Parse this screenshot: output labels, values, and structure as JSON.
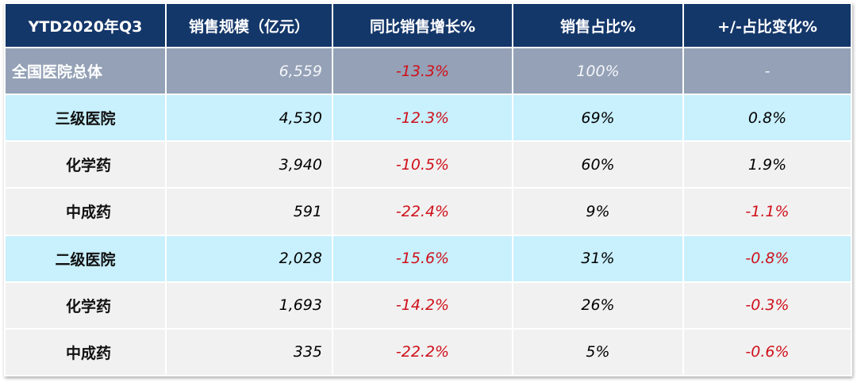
{
  "headers": [
    "YTD2020年Q3",
    "销售规模（亿元）",
    "同比销售增长%",
    "销售占比%",
    "+/-占比变化%"
  ],
  "rows": [
    {
      "type": "total",
      "name": "全国医院总体",
      "sales": "6,559",
      "growth": "-13.3%",
      "share": "100%",
      "share_change": "-"
    },
    {
      "type": "lvl",
      "name": "三级医院",
      "sales": "4,530",
      "growth": "-12.3%",
      "share": "69%",
      "share_change": "0.8%"
    },
    {
      "type": "sub",
      "name": "化学药",
      "sales": "3,940",
      "growth": "-10.5%",
      "share": "60%",
      "share_change": "1.9%"
    },
    {
      "type": "sub",
      "name": "中成药",
      "sales": "591",
      "growth": "-22.4%",
      "share": "9%",
      "share_change": "-1.1%"
    },
    {
      "type": "lvl",
      "name": "二级医院",
      "sales": "2,028",
      "growth": "-15.6%",
      "share": "31%",
      "share_change": "-0.8%"
    },
    {
      "type": "sub",
      "name": "化学药",
      "sales": "1,693",
      "growth": "-14.2%",
      "share": "26%",
      "share_change": "-0.3%"
    },
    {
      "type": "sub",
      "name": "中成药",
      "sales": "335",
      "growth": "-22.2%",
      "share": "5%",
      "share_change": "-0.6%"
    }
  ],
  "colors": {
    "header": "#14376a",
    "total_row": "#94a1b6",
    "level_row": "#c8f0fd",
    "sub_row": "#f1f1f1",
    "negative": "#d0101a"
  }
}
